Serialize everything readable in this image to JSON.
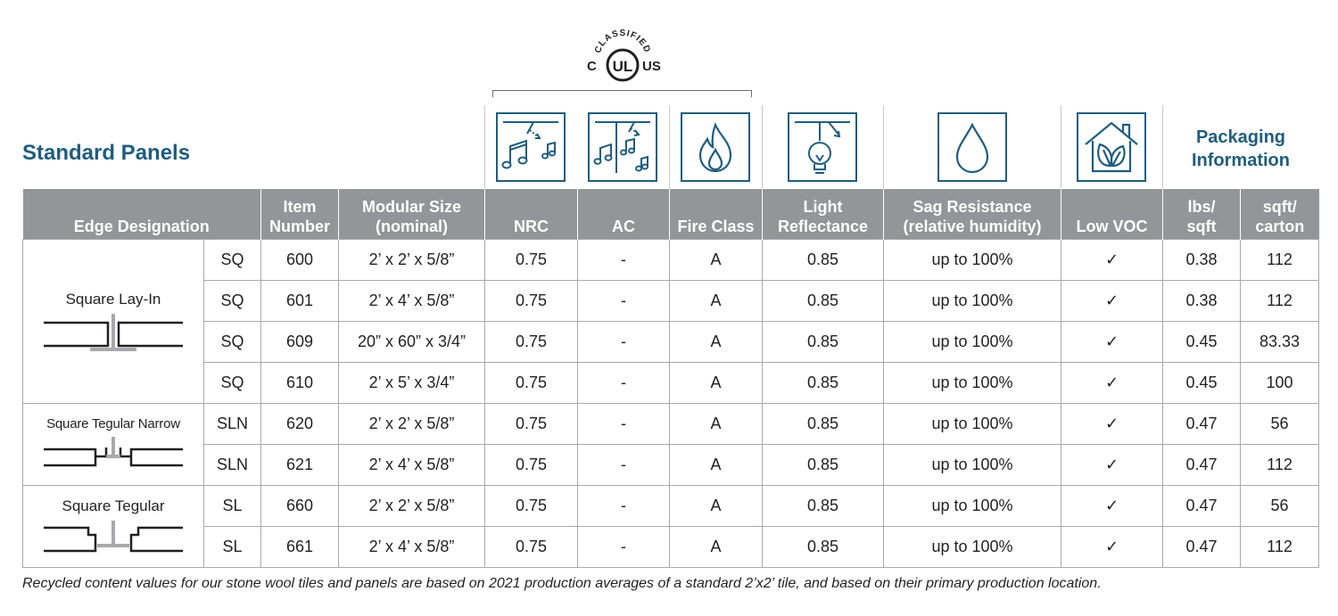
{
  "title": "Standard Panels",
  "ul_mark": {
    "top_text": "CLASSIFIED",
    "left": "C",
    "center": "UL",
    "right": "US"
  },
  "icons": [
    "nrc-icon",
    "ac-icon",
    "fire-class-icon",
    "light-reflectance-icon",
    "sag-resistance-icon",
    "low-voc-icon"
  ],
  "packaging_title": [
    "Packaging",
    "Information"
  ],
  "headers": {
    "edge": "Edge Designation",
    "item": [
      "Item",
      "Number"
    ],
    "size": [
      "Modular Size",
      "(nominal)"
    ],
    "nrc": "NRC",
    "ac": "AC",
    "fire": "Fire Class",
    "light": [
      "Light",
      "Reflectance"
    ],
    "sag": [
      "Sag Resistance",
      "(relative humidity)"
    ],
    "voc": "Low VOC",
    "lbs": [
      "lbs/",
      "sqft"
    ],
    "sqft": [
      "sqft/",
      "carton"
    ]
  },
  "groups": [
    {
      "label": "Square Lay-In",
      "type": "layin"
    },
    {
      "label": "Square Tegular Narrow",
      "type": "narrow"
    },
    {
      "label": "Square Tegular",
      "type": "tegular"
    }
  ],
  "rows": [
    {
      "edge": "SQ",
      "item": "600",
      "size": "2’ x 2’ x 5/8”",
      "nrc": "0.75",
      "ac": "-",
      "fire": "A",
      "light": "0.85",
      "sag": "up to 100%",
      "voc": "✓",
      "lbs": "0.38",
      "sqft": "112"
    },
    {
      "edge": "SQ",
      "item": "601",
      "size": "2’ x 4’ x 5/8”",
      "nrc": "0.75",
      "ac": "-",
      "fire": "A",
      "light": "0.85",
      "sag": "up to 100%",
      "voc": "✓",
      "lbs": "0.38",
      "sqft": "112"
    },
    {
      "edge": "SQ",
      "item": "609",
      "size": "20” x 60” x 3/4”",
      "nrc": "0.75",
      "ac": "-",
      "fire": "A",
      "light": "0.85",
      "sag": "up to 100%",
      "voc": "✓",
      "lbs": "0.45",
      "sqft": "83.33"
    },
    {
      "edge": "SQ",
      "item": "610",
      "size": "2’ x 5’ x 3/4”",
      "nrc": "0.75",
      "ac": "-",
      "fire": "A",
      "light": "0.85",
      "sag": "up to 100%",
      "voc": "✓",
      "lbs": "0.45",
      "sqft": "100"
    },
    {
      "edge": "SLN",
      "item": "620",
      "size": "2’ x 2’ x 5/8”",
      "nrc": "0.75",
      "ac": "-",
      "fire": "A",
      "light": "0.85",
      "sag": "up to 100%",
      "voc": "✓",
      "lbs": "0.47",
      "sqft": "56"
    },
    {
      "edge": "SLN",
      "item": "621",
      "size": "2’ x 4’ x 5/8”",
      "nrc": "0.75",
      "ac": "-",
      "fire": "A",
      "light": "0.85",
      "sag": "up to 100%",
      "voc": "✓",
      "lbs": "0.47",
      "sqft": "112"
    },
    {
      "edge": "SL",
      "item": "660",
      "size": "2’ x 2’ x 5/8”",
      "nrc": "0.75",
      "ac": "-",
      "fire": "A",
      "light": "0.85",
      "sag": "up to 100%",
      "voc": "✓",
      "lbs": "0.47",
      "sqft": "56"
    },
    {
      "edge": "SL",
      "item": "661",
      "size": "2’ x 4’ x 5/8”",
      "nrc": "0.75",
      "ac": "-",
      "fire": "A",
      "light": "0.85",
      "sag": "up to 100%",
      "voc": "✓",
      "lbs": "0.47",
      "sqft": "112"
    }
  ],
  "footnote": "Recycled content values for our stone wool tiles and panels are based on 2021 production averages of a standard 2’x2’ tile, and based on their primary production location.",
  "colors": {
    "brand_blue": "#1f5d7e",
    "header_gray": "#939598",
    "grid": "#a7a9ac"
  }
}
